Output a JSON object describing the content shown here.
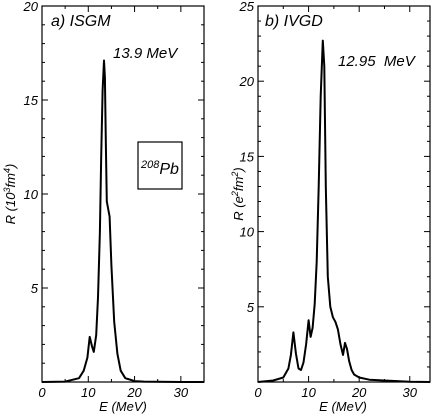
{
  "chart_data": [
    {
      "type": "line",
      "panel_label": "a) ISGM",
      "peak_label": "13.9 MeV",
      "inset_label_sup": "208",
      "inset_label_main": "Pb",
      "xlabel": "E (MeV)",
      "ylabel_parts": [
        "R (10",
        "3",
        "fm",
        "4",
        ")"
      ],
      "xlim": [
        0,
        35
      ],
      "ylim": [
        0,
        20
      ],
      "x_ticks": [
        0,
        10,
        20,
        30
      ],
      "y_ticks": [
        5,
        10,
        15,
        20
      ],
      "series": [
        {
          "x": [
            0,
            5,
            8,
            9,
            9.8,
            10.3,
            10.8,
            11.2,
            11.7,
            12.1,
            12.5,
            12.8,
            13.1,
            13.4,
            13.6,
            13.8,
            14.0,
            14.3,
            14.6,
            15.0,
            15.6,
            16.3,
            17.0,
            18.0,
            20.0,
            22,
            25,
            30,
            35
          ],
          "y": [
            0,
            0.02,
            0.2,
            0.6,
            1.3,
            2.4,
            1.9,
            1.6,
            2.5,
            4.5,
            8.0,
            12.0,
            15.5,
            17.1,
            16.2,
            12.5,
            9.6,
            9.2,
            8.8,
            6.2,
            3.2,
            1.5,
            0.6,
            0.2,
            0.05,
            0.02,
            0.01,
            0,
            0
          ]
        }
      ]
    },
    {
      "type": "line",
      "panel_label": "b) IVGD",
      "peak_label": "12.95  MeV",
      "xlabel": "E (MeV)",
      "ylabel_parts": [
        "R (e",
        "2",
        "fm",
        "2",
        ")"
      ],
      "xlim": [
        0,
        34
      ],
      "ylim": [
        0,
        25
      ],
      "x_ticks": [
        0,
        10,
        20,
        30
      ],
      "y_ticks": [
        5,
        10,
        15,
        20,
        25
      ],
      "series": [
        {
          "x": [
            0,
            3,
            5,
            6,
            6.5,
            7.0,
            7.5,
            8.0,
            8.5,
            9.0,
            9.5,
            10.0,
            10.4,
            10.8,
            11.2,
            11.6,
            12.0,
            12.4,
            12.8,
            13.1,
            13.4,
            13.8,
            14.3,
            14.8,
            15.3,
            15.8,
            16.3,
            16.8,
            17.2,
            17.6,
            18.0,
            18.5,
            19.0,
            20.0,
            22.0,
            25.0,
            28.0,
            30.0,
            34.0
          ],
          "y": [
            0,
            0.1,
            0.3,
            0.9,
            1.8,
            3.3,
            1.9,
            0.9,
            0.8,
            1.3,
            2.5,
            4.1,
            3.0,
            3.6,
            5.2,
            8.0,
            13.0,
            19.0,
            22.7,
            21.0,
            13.0,
            7.0,
            5.0,
            4.3,
            4.0,
            3.5,
            2.5,
            1.8,
            2.6,
            2.2,
            1.4,
            0.8,
            0.5,
            0.3,
            0.15,
            0.1,
            0.05,
            0.02,
            0
          ]
        }
      ]
    }
  ]
}
